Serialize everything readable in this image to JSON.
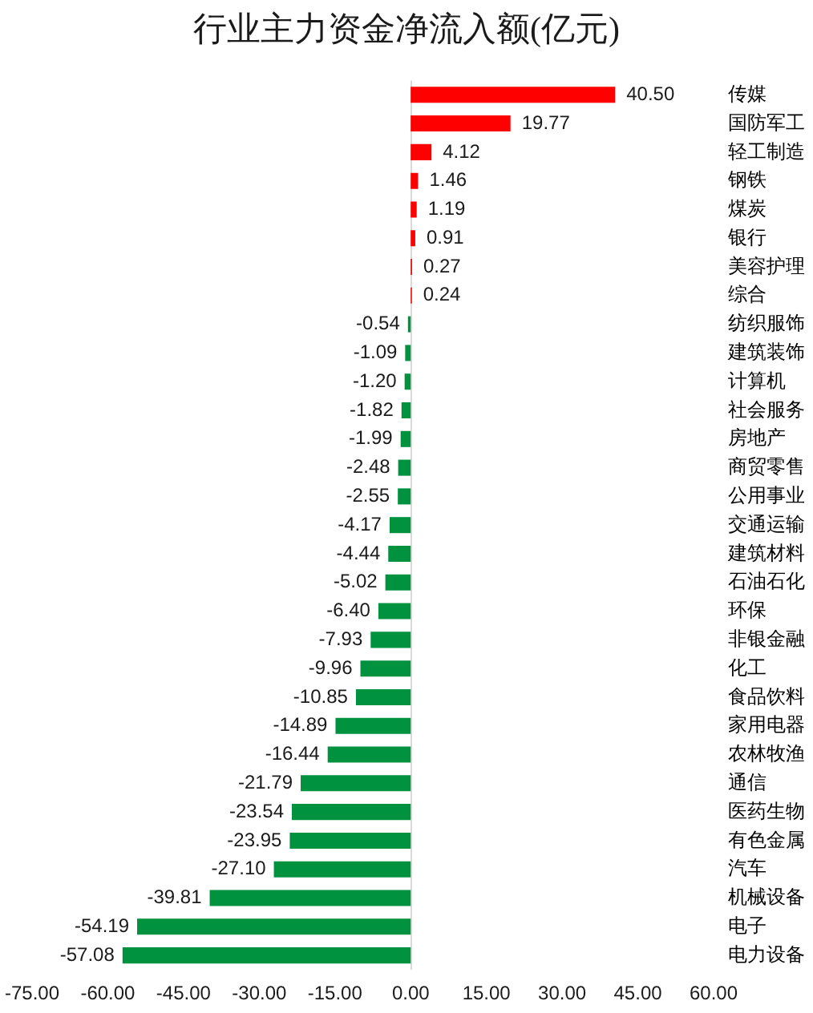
{
  "chart_data": {
    "type": "bar",
    "orientation": "horizontal",
    "title": "行业主力资金净流入额(亿元)",
    "categories": [
      "传媒",
      "国防军工",
      "轻工制造",
      "钢铁",
      "煤炭",
      "银行",
      "美容护理",
      "综合",
      "纺织服饰",
      "建筑装饰",
      "计算机",
      "社会服务",
      "房地产",
      "商贸零售",
      "公用事业",
      "交通运输",
      "建筑材料",
      "石油石化",
      "环保",
      "非银金融",
      "化工",
      "食品饮料",
      "家用电器",
      "农林牧渔",
      "通信",
      "医药生物",
      "有色金属",
      "汽车",
      "机械设备",
      "电子",
      "电力设备"
    ],
    "values": [
      40.5,
      19.77,
      4.12,
      1.46,
      1.19,
      0.91,
      0.27,
      0.24,
      -0.54,
      -1.09,
      -1.2,
      -1.82,
      -1.99,
      -2.48,
      -2.55,
      -4.17,
      -4.44,
      -5.02,
      -6.4,
      -7.93,
      -9.96,
      -10.85,
      -14.89,
      -16.44,
      -21.79,
      -23.54,
      -23.95,
      -27.1,
      -39.81,
      -54.19,
      -57.08
    ],
    "value_labels": [
      "40.50",
      "19.77",
      "4.12",
      "1.46",
      "1.19",
      "0.91",
      "0.27",
      "0.24",
      "-0.54",
      "-1.09",
      "-1.20",
      "-1.82",
      "-1.99",
      "-2.48",
      "-2.55",
      "-4.17",
      "-4.44",
      "-5.02",
      "-6.40",
      "-7.93",
      "-9.96",
      "-10.85",
      "-14.89",
      "-16.44",
      "-21.79",
      "-23.54",
      "-23.95",
      "-27.10",
      "-39.81",
      "-54.19",
      "-57.08"
    ],
    "colors": [
      "#ff0000",
      "#ff0000",
      "#ff0000",
      "#ff0000",
      "#ff0000",
      "#ff0000",
      "#ff0000",
      "#ff0000",
      "#00923f",
      "#00923f",
      "#00923f",
      "#00923f",
      "#00923f",
      "#00923f",
      "#00923f",
      "#00923f",
      "#00923f",
      "#00923f",
      "#00923f",
      "#00923f",
      "#00923f",
      "#00923f",
      "#00923f",
      "#00923f",
      "#00923f",
      "#00923f",
      "#00923f",
      "#00923f",
      "#00923f",
      "#00923f",
      "#00923f"
    ],
    "xlim": [
      -75,
      60
    ],
    "xticks": [
      {
        "value": -75,
        "label": "-75.00"
      },
      {
        "value": -60,
        "label": "-60.00"
      },
      {
        "value": -45,
        "label": "-45.00"
      },
      {
        "value": -30,
        "label": "-30.00"
      },
      {
        "value": -15,
        "label": "-15.00"
      },
      {
        "value": 0,
        "label": "0.00"
      },
      {
        "value": 15,
        "label": "15.00"
      },
      {
        "value": 30,
        "label": "30.00"
      },
      {
        "value": 45,
        "label": "45.00"
      },
      {
        "value": 60,
        "label": "60.00"
      }
    ],
    "ref_lines": [
      {
        "axis": "x",
        "value": 0,
        "color": "#d9d9d9"
      }
    ],
    "grid": false,
    "legend": false
  }
}
